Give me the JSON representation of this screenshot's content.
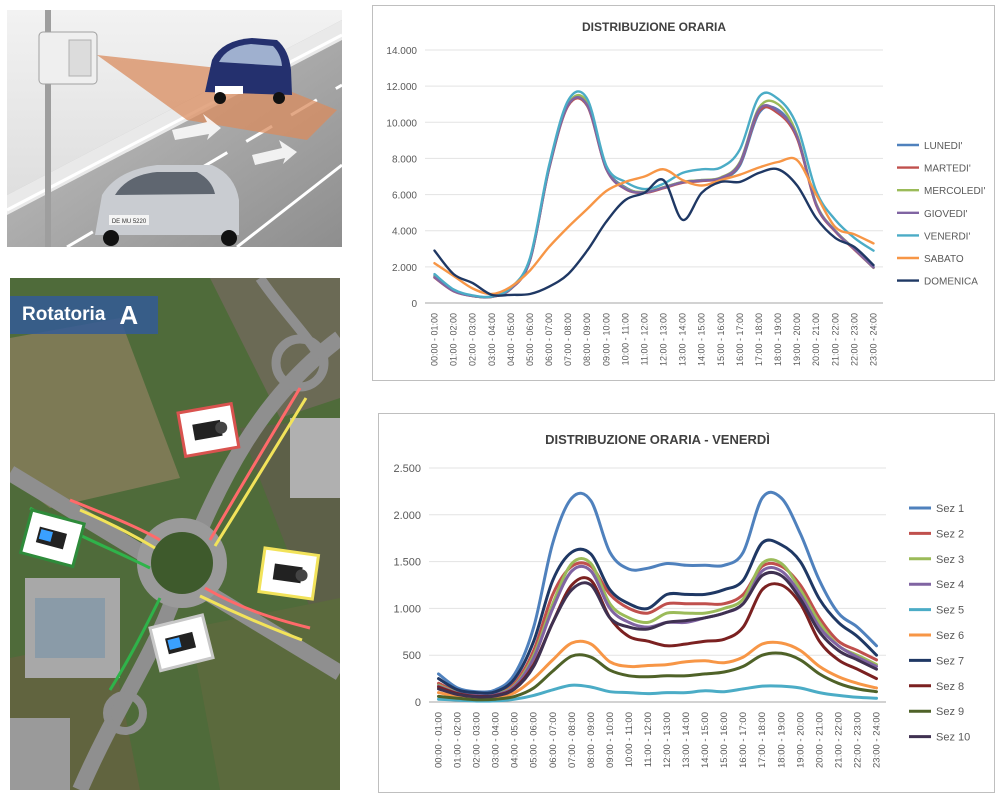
{
  "map": {
    "label": "Rotatoria",
    "letter": "A"
  },
  "photo": {
    "plate": "DE MU 5220"
  },
  "hours": [
    "00:00 - 01:00",
    "01:00 - 02:00",
    "02:00 - 03:00",
    "03:00 - 04:00",
    "04:00 - 05:00",
    "05:00 - 06:00",
    "06:00 - 07:00",
    "07:00 - 08:00",
    "08:00 - 09:00",
    "09:00 - 10:00",
    "10:00 - 11:00",
    "11:00 - 12:00",
    "12:00 - 13:00",
    "13:00 - 14:00",
    "14:00 - 15:00",
    "15:00 - 16:00",
    "16:00 - 17:00",
    "17:00 - 18:00",
    "18:00 - 19:00",
    "19:00 - 20:00",
    "20:00 - 21:00",
    "21:00 - 22:00",
    "22:00 - 23:00",
    "23:00 - 24:00"
  ],
  "chart_data": [
    {
      "type": "line",
      "title": "DISTRIBUZIONE ORARIA",
      "ylim": [
        0,
        14000
      ],
      "yticks": [
        0,
        2000,
        4000,
        6000,
        8000,
        10000,
        12000,
        14000
      ],
      "ytick_labels": [
        "0",
        "2.000",
        "4.000",
        "6.000",
        "8.000",
        "10.000",
        "12.000",
        "14.000"
      ],
      "grid": true,
      "legend": "right",
      "series": [
        {
          "name": "LUNEDI'",
          "color": "#4f81bd",
          "values": [
            1500,
            700,
            400,
            350,
            800,
            2400,
            7500,
            11000,
            11000,
            7500,
            6400,
            6100,
            6400,
            6700,
            6800,
            6900,
            7600,
            10500,
            10700,
            9200,
            5500,
            4000,
            3000,
            2000
          ]
        },
        {
          "name": "MARTEDI'",
          "color": "#c0504d",
          "values": [
            1400,
            650,
            380,
            340,
            780,
            2350,
            7400,
            10900,
            10900,
            7400,
            6300,
            6100,
            6350,
            6650,
            6750,
            6900,
            7700,
            10600,
            10500,
            9100,
            5400,
            3950,
            2950,
            1950
          ]
        },
        {
          "name": "MERCOLEDI'",
          "color": "#9bbb59",
          "values": [
            1450,
            680,
            390,
            345,
            790,
            2380,
            7450,
            11000,
            11100,
            7450,
            6350,
            6150,
            6400,
            6700,
            6800,
            6950,
            7800,
            10800,
            11000,
            9300,
            5500,
            4000,
            3000,
            1950
          ]
        },
        {
          "name": "GIOVEDI'",
          "color": "#8064a2",
          "values": [
            1420,
            660,
            385,
            342,
            785,
            2360,
            7420,
            10950,
            10950,
            7420,
            6320,
            6120,
            6380,
            6680,
            6780,
            6920,
            7750,
            10700,
            10600,
            9200,
            5450,
            3980,
            2980,
            1960
          ]
        },
        {
          "name": "VENERDI'",
          "color": "#4bacc6",
          "values": [
            1600,
            750,
            420,
            360,
            850,
            2500,
            7600,
            11200,
            11300,
            7600,
            6700,
            6300,
            6600,
            7200,
            7400,
            7500,
            8500,
            11400,
            11300,
            9800,
            6200,
            4600,
            3600,
            2900
          ]
        },
        {
          "name": "SABATO",
          "color": "#f79646",
          "values": [
            2200,
            1500,
            800,
            500,
            900,
            1800,
            3100,
            4200,
            5200,
            6200,
            6700,
            7000,
            7400,
            6800,
            6500,
            6800,
            7100,
            7500,
            7800,
            7900,
            6000,
            4200,
            3800,
            3300
          ]
        },
        {
          "name": "DOMENICA",
          "color": "#1f3864",
          "values": [
            2900,
            1600,
            1100,
            450,
            450,
            500,
            900,
            1600,
            2900,
            4500,
            5700,
            6100,
            6800,
            4600,
            6100,
            6700,
            6700,
            7200,
            7400,
            6500,
            4700,
            3600,
            3100,
            2100
          ]
        }
      ]
    },
    {
      "type": "line",
      "title": "DISTRIBUZIONE ORARIA - VENERDÌ",
      "ylim": [
        0,
        2500
      ],
      "yticks": [
        0,
        500,
        1000,
        1500,
        2000,
        2500
      ],
      "ytick_labels": [
        "0",
        "500",
        "1.000",
        "1.500",
        "2.000",
        "2.500"
      ],
      "grid": true,
      "legend": "right",
      "series": [
        {
          "name": "Sez 1",
          "color": "#4f81bd",
          "values": [
            300,
            150,
            110,
            130,
            300,
            800,
            1700,
            2180,
            2150,
            1600,
            1420,
            1430,
            1480,
            1460,
            1460,
            1460,
            1600,
            2180,
            2180,
            1800,
            1300,
            950,
            800,
            600
          ]
        },
        {
          "name": "Sez 2",
          "color": "#c0504d",
          "values": [
            200,
            110,
            80,
            90,
            200,
            550,
            1150,
            1450,
            1450,
            1150,
            1000,
            950,
            1050,
            1050,
            1050,
            1050,
            1150,
            1450,
            1450,
            1250,
            900,
            650,
            550,
            450
          ]
        },
        {
          "name": "Sez 3",
          "color": "#9bbb59",
          "values": [
            180,
            100,
            75,
            85,
            180,
            500,
            1050,
            1480,
            1480,
            1050,
            900,
            850,
            950,
            950,
            950,
            1000,
            1100,
            1480,
            1480,
            1200,
            850,
            600,
            500,
            400
          ]
        },
        {
          "name": "Sez 4",
          "color": "#8064a2",
          "values": [
            170,
            95,
            70,
            80,
            170,
            470,
            1000,
            1400,
            1400,
            1000,
            850,
            800,
            850,
            850,
            900,
            950,
            1050,
            1400,
            1400,
            1150,
            800,
            600,
            480,
            380
          ]
        },
        {
          "name": "Sez 5",
          "color": "#4bacc6",
          "values": [
            30,
            20,
            10,
            12,
            30,
            70,
            130,
            180,
            160,
            110,
            100,
            90,
            100,
            100,
            120,
            110,
            140,
            170,
            170,
            150,
            100,
            70,
            50,
            40
          ]
        },
        {
          "name": "Sez 6",
          "color": "#f79646",
          "values": [
            100,
            60,
            40,
            45,
            100,
            250,
            450,
            630,
            620,
            430,
            380,
            390,
            400,
            430,
            440,
            420,
            480,
            620,
            630,
            550,
            380,
            270,
            200,
            150
          ]
        },
        {
          "name": "Sez 7",
          "color": "#1f3864",
          "values": [
            250,
            130,
            100,
            110,
            250,
            650,
            1300,
            1600,
            1580,
            1200,
            1050,
            1000,
            1150,
            1150,
            1150,
            1200,
            1300,
            1700,
            1680,
            1500,
            1100,
            850,
            700,
            500
          ]
        },
        {
          "name": "Sez 8",
          "color": "#7b2121",
          "values": [
            160,
            90,
            60,
            70,
            150,
            400,
            850,
            1250,
            1300,
            900,
            700,
            650,
            600,
            620,
            650,
            670,
            800,
            1200,
            1250,
            1050,
            650,
            450,
            350,
            250
          ]
        },
        {
          "name": "Sez 9",
          "color": "#4f6228",
          "values": [
            60,
            40,
            25,
            30,
            60,
            150,
            330,
            490,
            480,
            340,
            280,
            270,
            280,
            280,
            300,
            320,
            380,
            500,
            520,
            450,
            300,
            200,
            140,
            110
          ]
        },
        {
          "name": "Sez 10",
          "color": "#3f3151",
          "values": [
            140,
            80,
            55,
            65,
            140,
            380,
            850,
            1200,
            1250,
            900,
            800,
            780,
            850,
            870,
            900,
            950,
            1050,
            1350,
            1350,
            1100,
            750,
            550,
            450,
            350
          ]
        }
      ]
    }
  ]
}
